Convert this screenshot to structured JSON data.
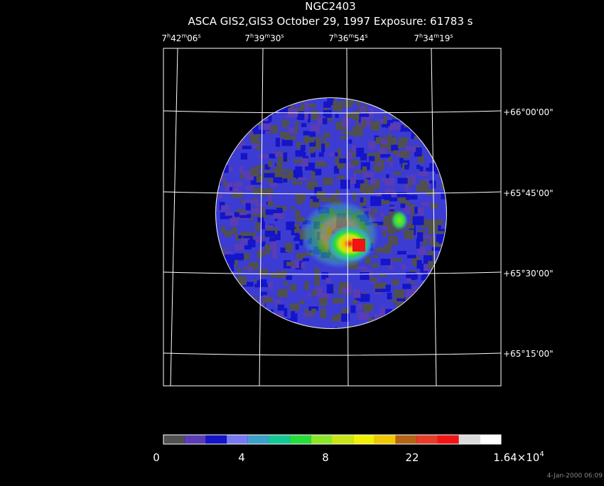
{
  "title": "NGC2403",
  "subtitle": "ASCA GIS2,GIS3 October 29, 1997 Exposure: 61783 s",
  "ra_labels": [
    [
      "7",
      "h",
      "42",
      "m",
      "06",
      "s"
    ],
    [
      "7",
      "h",
      "39",
      "m",
      "30",
      "s"
    ],
    [
      "7",
      "h",
      "36",
      "m",
      "54",
      "s"
    ],
    [
      "7",
      "h",
      "34",
      "m",
      "19",
      "s"
    ]
  ],
  "dec_labels": [
    "+66°00'00\"",
    "+65°45'00\"",
    "+65°30'00\"",
    "+65°15'00\""
  ],
  "colorbar": {
    "colors": [
      "#505050",
      "#5a3cb4",
      "#1414c8",
      "#7878f0",
      "#3ca0c8",
      "#14c896",
      "#28dc3c",
      "#8ce628",
      "#c8e614",
      "#f0f000",
      "#f0c800",
      "#b46414",
      "#e63c28",
      "#f01414",
      "#dcdcdc",
      "#ffffff"
    ],
    "labels": [
      [
        "0"
      ],
      [
        "4"
      ],
      [
        "8"
      ],
      [
        "22"
      ],
      [
        "1.64×10",
        "4"
      ]
    ]
  },
  "timestamp": "4-Jan-2000 06:09"
}
